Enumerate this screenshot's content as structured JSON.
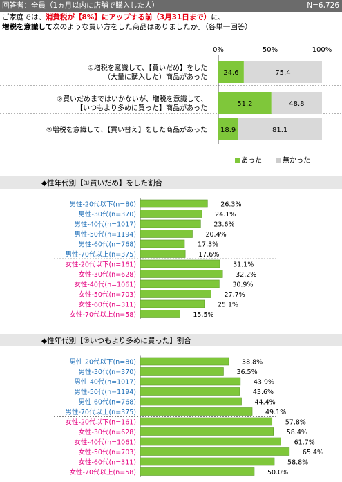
{
  "header": {
    "respondents": "回答者：全員（1ヵ月以内に店舗で購入した人）",
    "sample_size": "N=6,726"
  },
  "question": {
    "part1": "ご家庭では、",
    "part2": "消費税が【8%】にアップする前（3月31日まで）",
    "part3": "に、",
    "part4": "増税を意識して",
    "part5": "次のような買い方をした商品はありましたか。（各単一回答）"
  },
  "colors": {
    "green": "#7fc73a",
    "gray": "#d9d9d9",
    "pink": "#e4007f",
    "blue": "#1f6fb8"
  },
  "chart_data": [
    {
      "type": "bar",
      "stacked": true,
      "orientation": "horizontal",
      "x_ticks": [
        "0%",
        "50%",
        "100%"
      ],
      "xlim": [
        0,
        100
      ],
      "categories": [
        [
          "①増税を意識して、【買いだめ】をした",
          "（大量に購入した）商品があった"
        ],
        [
          "②買いだめまではいかないが、増税を意識して、",
          "【いつもより多めに買った】商品があった"
        ],
        [
          "③増税を意識して、【買い替え】をした商品があった"
        ]
      ],
      "series": [
        {
          "name": "あった",
          "values": [
            24.6,
            51.2,
            18.9
          ]
        },
        {
          "name": "無かった",
          "values": [
            75.4,
            48.8,
            81.1
          ]
        }
      ],
      "legend_position": "bottom-right"
    },
    {
      "type": "bar",
      "orientation": "horizontal",
      "title": "◆性年代別【①買いだめ】をした割合",
      "categories": [
        "男性-20代以下(n=80)",
        "男性-30代(n=370)",
        "男性-40代(n=1017)",
        "男性-50代(n=1194)",
        "男性-60代(n=768)",
        "男性-70代以上(n=375)",
        "女性-20代以下(n=161)",
        "女性-30代(n=628)",
        "女性-40代(n=1061)",
        "女性-50代(n=703)",
        "女性-60代(n=311)",
        "女性-70代以上(n=58)"
      ],
      "value_labels": [
        "26.3%",
        "24.1%",
        "23.6%",
        "20.4%",
        "17.3%",
        "17.6%",
        "31.1%",
        "32.2%",
        "30.9%",
        "27.7%",
        "25.1%",
        "15.5%"
      ],
      "values": [
        26.3,
        24.1,
        23.6,
        20.4,
        17.3,
        17.6,
        31.1,
        32.2,
        30.9,
        27.7,
        25.1,
        15.5
      ]
    },
    {
      "type": "bar",
      "orientation": "horizontal",
      "title": "◆性年代別【②いつもより多めに買った】割合",
      "categories": [
        "男性-20代以下(n=80)",
        "男性-30代(n=370)",
        "男性-40代(n=1017)",
        "男性-50代(n=1194)",
        "男性-60代(n=768)",
        "男性-70代以上(n=375)",
        "女性-20代以下(n=161)",
        "女性-30代(n=628)",
        "女性-40代(n=1061)",
        "女性-50代(n=703)",
        "女性-60代(n=311)",
        "女性-70代以上(n=58)"
      ],
      "value_labels": [
        "38.8%",
        "36.5%",
        "43.9%",
        "43.6%",
        "44.4%",
        "49.1%",
        "57.8%",
        "58.4%",
        "61.7%",
        "65.4%",
        "58.8%",
        "50.0%"
      ],
      "values": [
        38.8,
        36.5,
        43.9,
        43.6,
        44.4,
        49.1,
        57.8,
        58.4,
        61.7,
        65.4,
        58.8,
        50.0
      ]
    }
  ]
}
